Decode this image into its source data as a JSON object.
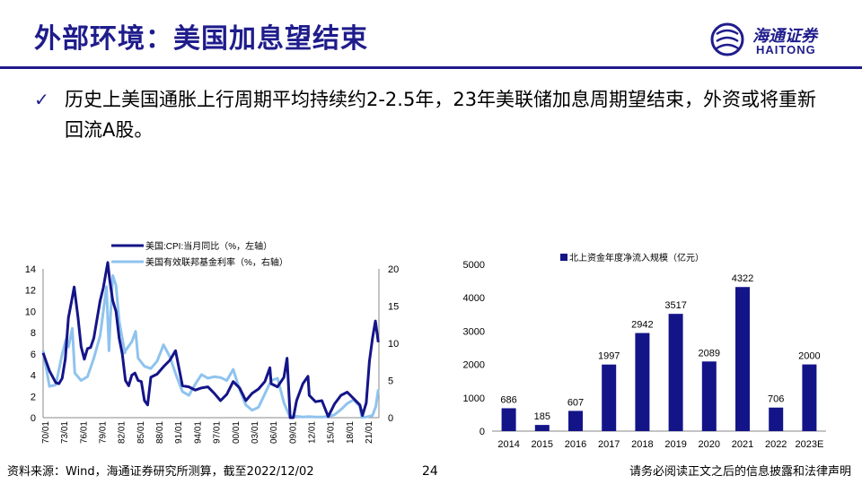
{
  "header": {
    "title": "外部环境：美国加息望结束",
    "logo_cn": "海通证券",
    "logo_en": "HAITONG"
  },
  "bullet": {
    "icon": "checkmark-icon",
    "text": "历史上美国通胀上行周期平均持续约2-2.5年，23年美联储加息周期望结束，外资或将重新回流A股。"
  },
  "footer": {
    "source": "资料来源：Wind，海通证券研究所测算，截至2022/12/02",
    "page": "24",
    "disclaimer": "请务必阅读正文之后的信息披露和法律声明"
  },
  "colors": {
    "brand": "#1f1c8c",
    "cpi": "#141489",
    "fed": "#8fc3ee",
    "bar": "#141489"
  },
  "chart_data": [
    {
      "type": "line",
      "legend_position": "top",
      "x_tick_labels": [
        "70/01",
        "73/01",
        "76/01",
        "79/01",
        "82/01",
        "85/01",
        "88/01",
        "91/01",
        "94/01",
        "97/01",
        "00/01",
        "03/01",
        "06/01",
        "09/01",
        "12/01",
        "15/01",
        "18/01",
        "21/01"
      ],
      "x_range": [
        1970,
        2023
      ],
      "y_left": {
        "range": [
          0,
          14
        ],
        "ticks": [
          0,
          2,
          4,
          6,
          8,
          10,
          12,
          14
        ]
      },
      "y_right": {
        "range": [
          0,
          20
        ],
        "ticks": [
          0,
          5,
          10,
          15,
          20
        ]
      },
      "series": [
        {
          "name": "美国:CPI:当月同比（%，左轴）",
          "axis": "left",
          "x": [
            1970,
            1971,
            1972,
            1972.5,
            1973,
            1973.5,
            1974,
            1974.5,
            1974.9,
            1975.5,
            1976,
            1976.5,
            1977,
            1977.5,
            1978,
            1979,
            1979.5,
            1980.2,
            1980.5,
            1981,
            1981.5,
            1982,
            1982.5,
            1983,
            1983.5,
            1984,
            1984.5,
            1985,
            1985.5,
            1986,
            1986.5,
            1987,
            1988,
            1989,
            1990,
            1990.9,
            1991.5,
            1992,
            1993,
            1994,
            1995,
            1996,
            1997,
            1998,
            1999,
            2000,
            2001,
            2002,
            2003,
            2004,
            2005,
            2005.8,
            2006,
            2007,
            2008,
            2008.5,
            2009,
            2009.5,
            2010,
            2011,
            2011.8,
            2012,
            2013,
            2014,
            2015,
            2016,
            2017,
            2018,
            2019,
            2020,
            2020.4,
            2021,
            2021.5,
            2022,
            2022.45,
            2022.9
          ],
          "y": [
            6.1,
            4.4,
            3.3,
            3.2,
            3.7,
            5.5,
            9.4,
            11.0,
            12.3,
            9.5,
            6.7,
            5.5,
            6.5,
            6.6,
            7.5,
            11.0,
            12.2,
            14.6,
            13.0,
            11.0,
            10.0,
            7.5,
            6.0,
            3.5,
            3.0,
            4.0,
            4.2,
            3.5,
            3.4,
            1.6,
            1.2,
            3.8,
            4.1,
            4.8,
            5.4,
            6.3,
            4.5,
            3.0,
            2.9,
            2.6,
            2.8,
            2.9,
            2.3,
            1.6,
            2.2,
            3.4,
            2.8,
            1.6,
            2.3,
            2.7,
            3.4,
            4.7,
            3.2,
            2.9,
            3.8,
            5.6,
            -0.4,
            -2.1,
            1.6,
            3.2,
            3.9,
            2.1,
            1.5,
            1.6,
            0.1,
            1.3,
            2.1,
            2.4,
            1.8,
            1.2,
            0.2,
            1.4,
            5.3,
            7.5,
            9.1,
            7.1
          ]
        },
        {
          "name": "美国有效联邦基金利率（%，右轴）",
          "axis": "right",
          "x": [
            1970,
            1971,
            1972,
            1973,
            1973.6,
            1974,
            1974.6,
            1975,
            1976,
            1977,
            1978,
            1979,
            1980,
            1980.4,
            1980.6,
            1981,
            1981.5,
            1982,
            1982.9,
            1983,
            1984,
            1984.6,
            1985,
            1986,
            1987,
            1988,
            1989,
            1990,
            1991,
            1992,
            1993,
            1994,
            1995,
            1996,
            1997,
            1998,
            1999,
            2000,
            2001,
            2002,
            2003,
            2004,
            2005,
            2006,
            2007,
            2008,
            2008.9,
            2009,
            2010,
            2011,
            2012,
            2013,
            2014,
            2015,
            2016,
            2017,
            2018,
            2019,
            2019.9,
            2020,
            2020.3,
            2021,
            2022,
            2022.5,
            2022.9
          ],
          "y": [
            9.0,
            4.2,
            4.4,
            8.5,
            10.5,
            9.5,
            12.0,
            6.0,
            5.0,
            5.5,
            8.0,
            11.0,
            17.6,
            9.0,
            13.0,
            19.1,
            17.8,
            13.0,
            8.7,
            9.0,
            10.2,
            11.6,
            8.0,
            6.9,
            6.6,
            7.6,
            9.8,
            8.2,
            5.7,
            3.5,
            3.0,
            4.5,
            5.8,
            5.3,
            5.5,
            5.4,
            5.0,
            6.5,
            3.8,
            1.7,
            1.0,
            1.4,
            3.2,
            5.0,
            5.3,
            2.0,
            0.2,
            0.15,
            0.18,
            0.1,
            0.15,
            0.1,
            0.1,
            0.15,
            0.4,
            1.1,
            1.9,
            2.4,
            1.6,
            1.5,
            0.05,
            0.08,
            0.3,
            1.5,
            3.8
          ]
        }
      ]
    },
    {
      "type": "bar",
      "legend": "北上资金年度净流入规模（亿元）",
      "legend_position": "top",
      "categories": [
        "2014",
        "2015",
        "2016",
        "2017",
        "2018",
        "2019",
        "2020",
        "2021",
        "2022",
        "2023E"
      ],
      "values": [
        686,
        185,
        607,
        1997,
        2942,
        3517,
        2089,
        4322,
        706,
        2000
      ],
      "y_range": [
        0,
        5000
      ],
      "y_ticks": [
        0,
        1000,
        2000,
        3000,
        4000,
        5000
      ]
    }
  ]
}
